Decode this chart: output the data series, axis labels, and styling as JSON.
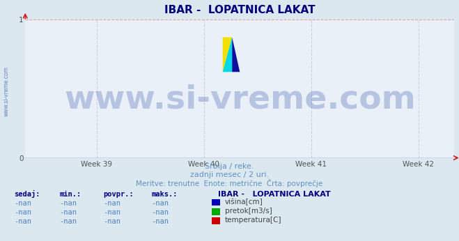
{
  "title": "IBAR -  LOPATNICA LAKAT",
  "background_color": "#dce8f0",
  "plot_bg_color": "#eaf0f8",
  "grid_color_v": "#c8d4e0",
  "grid_color_h_top": "#e8a0a0",
  "axis_color": "#6060c0",
  "title_color": "#000080",
  "title_fontsize": 11,
  "xlim": [
    0,
    1
  ],
  "ylim": [
    0,
    1
  ],
  "x_ticks": [
    0.166,
    0.416,
    0.666,
    0.916
  ],
  "x_tick_labels": [
    "Week 39",
    "Week 40",
    "Week 41",
    "Week 42"
  ],
  "y_ticks": [
    0,
    1
  ],
  "y_tick_labels": [
    "0",
    "1"
  ],
  "subtitle1": "Srbija / reke.",
  "subtitle2": "zadnji mesec / 2 uri.",
  "subtitle3": "Meritve: trenutne  Enote: metrične  Črta: povprečje",
  "subtitle_color": "#6090c0",
  "watermark": "www.si-vreme.com",
  "watermark_color": "#4060b0",
  "watermark_alpha": 0.3,
  "watermark_fontsize": 34,
  "side_text": "www.si-vreme.com",
  "side_text_color": "#4060b0",
  "legend_title": "IBAR -   LOPATNICA LAKAT",
  "legend_title_color": "#000080",
  "legend_items": [
    {
      "label": "višina[cm]",
      "color": "#0000bb"
    },
    {
      "label": "pretok[m3/s]",
      "color": "#00aa00"
    },
    {
      "label": "temperatura[C]",
      "color": "#cc0000"
    }
  ],
  "table_headers": [
    "sedaj:",
    "min.:",
    "povpr.:",
    "maks.:"
  ],
  "table_values": [
    "-nan",
    "-nan",
    "-nan",
    "-nan"
  ],
  "table_header_color": "#000080",
  "value_color": "#5080c0"
}
